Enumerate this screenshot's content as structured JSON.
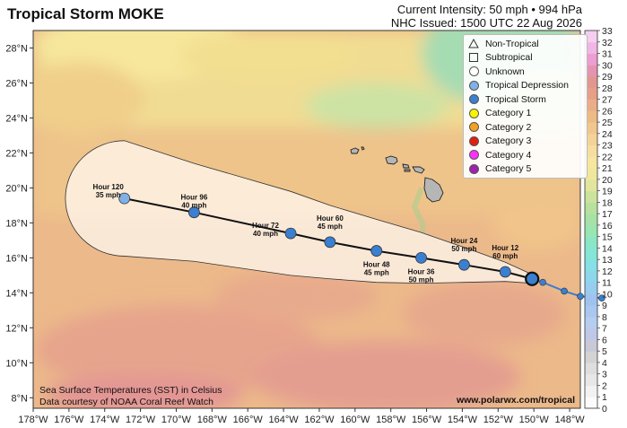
{
  "title": "Tropical Storm MOKE",
  "header": {
    "intensity": "Current Intensity: 50 mph • 994 hPa",
    "issued": "NHC Issued: 1500 UTC 22 Aug 2026"
  },
  "axes": {
    "lat_labels": [
      "28°N",
      "26°N",
      "24°N",
      "22°N",
      "20°N",
      "18°N",
      "16°N",
      "14°N",
      "12°N",
      "10°N",
      "8°N"
    ],
    "lon_labels": [
      "178°W",
      "176°W",
      "174°W",
      "172°W",
      "170°W",
      "168°W",
      "166°W",
      "164°W",
      "162°W",
      "160°W",
      "158°W",
      "156°W",
      "154°W",
      "152°W",
      "150°W",
      "148°W"
    ]
  },
  "legend": [
    {
      "label": "Non-Tropical",
      "shape": "triangle",
      "color": "#ffffff"
    },
    {
      "label": "Subtropical",
      "shape": "square",
      "color": "#ffffff"
    },
    {
      "label": "Unknown",
      "shape": "circle",
      "color": "#ffffff"
    },
    {
      "label": "Tropical Depression",
      "shape": "circle",
      "color": "#80b0e8"
    },
    {
      "label": "Tropical Storm",
      "shape": "circle",
      "color": "#3a7fd0"
    },
    {
      "label": "Category 1",
      "shape": "circle",
      "color": "#f5f500"
    },
    {
      "label": "Category 2",
      "shape": "circle",
      "color": "#f5a020"
    },
    {
      "label": "Category 3",
      "shape": "circle",
      "color": "#e02010"
    },
    {
      "label": "Category 4",
      "shape": "circle",
      "color": "#ff30ff"
    },
    {
      "label": "Category 5",
      "shape": "circle",
      "color": "#a020b0"
    }
  ],
  "forecast_points": [
    {
      "hour": "Hour 12",
      "wind": "60 mph",
      "lon": -151.6,
      "lat": 15.2,
      "color": "#3a7fd0"
    },
    {
      "hour": "Hour 24",
      "wind": "50 mph",
      "lon": -153.9,
      "lat": 15.6,
      "color": "#3a7fd0"
    },
    {
      "hour": "Hour 36",
      "wind": "50 mph",
      "lon": -156.3,
      "lat": 16.0,
      "color": "#3a7fd0"
    },
    {
      "hour": "Hour 48",
      "wind": "45 mph",
      "lon": -158.8,
      "lat": 16.4,
      "color": "#3a7fd0"
    },
    {
      "hour": "Hour 60",
      "wind": "45 mph",
      "lon": -161.4,
      "lat": 16.9,
      "color": "#3a7fd0"
    },
    {
      "hour": "Hour 72",
      "wind": "40 mph",
      "lon": -163.6,
      "lat": 17.4,
      "color": "#3a7fd0"
    },
    {
      "hour": "Hour 96",
      "wind": "40 mph",
      "lon": -169.0,
      "lat": 18.6,
      "color": "#3a7fd0"
    },
    {
      "hour": "Hour 120",
      "wind": "35 mph",
      "lon": -172.9,
      "lat": 19.4,
      "color": "#80b0e8"
    }
  ],
  "current_position": {
    "lon": -150.1,
    "lat": 14.8
  },
  "past_track": [
    {
      "lon": -150.1,
      "lat": 14.8
    },
    {
      "lon": -149.5,
      "lat": 14.6
    },
    {
      "lon": -148.3,
      "lat": 14.1
    },
    {
      "lon": -147.4,
      "lat": 13.8
    },
    {
      "lon": -146.2,
      "lat": 13.7
    }
  ],
  "colorbar": {
    "labels": [
      "0",
      "2",
      "4",
      "6",
      "8",
      "10",
      "12",
      "14",
      "16",
      "18",
      "20",
      "22",
      "24",
      "26",
      "28",
      "30",
      "32"
    ],
    "labels_odd": [
      "1",
      "3",
      "5",
      "7",
      "9",
      "11",
      "13",
      "15",
      "17",
      "19",
      "21",
      "23",
      "25",
      "27",
      "29",
      "31",
      "33"
    ],
    "min": 0,
    "max": 33
  },
  "credit": {
    "line1": "Sea Surface Temperatures (SST) in Celsius",
    "line2": "Data courtesy of NOAA Coral Reef Watch"
  },
  "site": "www.polarwx.com/tropical"
}
